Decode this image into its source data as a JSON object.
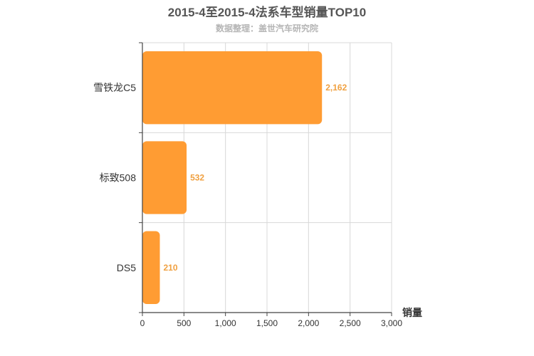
{
  "header": {
    "title": "2015-4至2015-4法系车型销量TOP10",
    "subtitle": "数据整理：盖世汽车研究院"
  },
  "colors": {
    "bar": "#ff9c33",
    "value_label": "#f0a040",
    "grid": "#d8d8d8",
    "axis": "#444444",
    "text": "#333333"
  },
  "chart_data": {
    "type": "bar",
    "orientation": "horizontal",
    "categories": [
      "雪铁龙C5",
      "标致508",
      "DS5"
    ],
    "values": [
      2162,
      532,
      210
    ],
    "value_labels": [
      "2,162",
      "532",
      "210"
    ],
    "xlabel": "销量",
    "ylabel": "",
    "xlim": [
      0,
      3000
    ],
    "x_ticks": [
      0,
      500,
      1000,
      1500,
      2000,
      2500,
      3000
    ],
    "x_tick_labels": [
      "0",
      "500",
      "1,000",
      "1,500",
      "2,000",
      "2,500",
      "3,000"
    ],
    "grid": true,
    "legend": "none"
  }
}
